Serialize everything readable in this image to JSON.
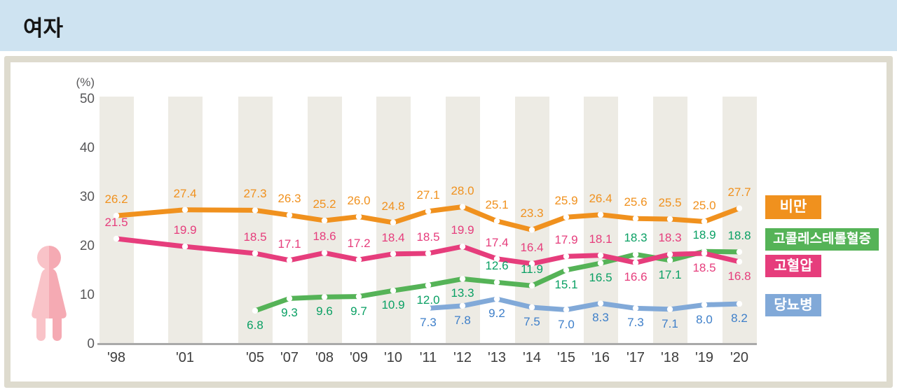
{
  "header": {
    "title": "여자"
  },
  "chart_data": {
    "type": "line",
    "unit_label": "(%)",
    "y_ticks": [
      0,
      10,
      20,
      30,
      40,
      50
    ],
    "ylim": [
      0,
      50
    ],
    "x": [
      "'98",
      "'01",
      "'05",
      "'07",
      "'08",
      "'09",
      "'10",
      "'11",
      "'12",
      "'13",
      "'14",
      "'15",
      "'16",
      "'17",
      "'18",
      "'19",
      "'20"
    ],
    "banded_x": [
      "'98",
      "'01",
      "'05",
      "'08",
      "'10",
      "'12",
      "'14",
      "'16",
      "'18",
      "'20"
    ],
    "series": [
      {
        "key": "diabetes",
        "name": "당뇨병",
        "color": "#81a9d8",
        "label_color": "#3e7fc9",
        "start_x": "'11",
        "values": [
          7.3,
          7.8,
          9.2,
          7.5,
          7.0,
          8.3,
          7.3,
          7.1,
          8.0,
          8.2
        ],
        "label_side": [
          "below",
          "below",
          "below",
          "below",
          "below",
          "below",
          "below",
          "below",
          "below",
          "below"
        ]
      },
      {
        "key": "hypercholesterolemia",
        "name": "고콜레스테롤혈증",
        "color": "#55b357",
        "label_color": "#0aa064",
        "start_x": "'05",
        "values": [
          6.8,
          9.3,
          9.6,
          9.7,
          10.9,
          12.0,
          13.3,
          12.6,
          11.9,
          15.1,
          16.5,
          18.3,
          17.1,
          18.9,
          18.8
        ],
        "label_side": [
          "below",
          "below",
          "below",
          "below",
          "below",
          "below",
          "below",
          "above",
          "above",
          "below",
          "below",
          "above",
          "below",
          "above",
          "above"
        ]
      },
      {
        "key": "hypertension",
        "name": "고혈압",
        "color": "#e63d7c",
        "label_color": "#e63d7c",
        "start_x": "'98",
        "values": [
          21.5,
          19.9,
          18.5,
          17.1,
          18.6,
          17.2,
          18.4,
          18.5,
          19.9,
          17.4,
          16.4,
          17.9,
          18.1,
          16.6,
          18.3,
          18.5,
          16.8
        ],
        "label_side": [
          "above",
          "above",
          "above",
          "above",
          "above",
          "above",
          "above",
          "above",
          "above",
          "above",
          "above",
          "above",
          "above",
          "below",
          "above",
          "below",
          "below"
        ]
      },
      {
        "key": "obesity",
        "name": "비만",
        "color": "#f0911e",
        "label_color": "#f0911e",
        "start_x": "'98",
        "values": [
          26.2,
          27.4,
          27.3,
          26.3,
          25.2,
          26.0,
          24.8,
          27.1,
          28.0,
          25.1,
          23.3,
          25.9,
          26.4,
          25.6,
          25.5,
          25.0,
          27.7
        ],
        "label_side": [
          "above",
          "above",
          "above",
          "above",
          "above",
          "above",
          "above",
          "above",
          "above",
          "above",
          "above",
          "above",
          "above",
          "above",
          "above",
          "above",
          "above"
        ]
      }
    ],
    "legend": [
      {
        "key": "obesity",
        "label": "비만",
        "color": "#f0911e"
      },
      {
        "key": "hypercholesterolemia",
        "label": "고콜레스테롤혈증",
        "color": "#55b357"
      },
      {
        "key": "hypertension",
        "label": "고혈압",
        "color": "#e63d7c"
      },
      {
        "key": "diabetes",
        "label": "당뇨병",
        "color": "#81a9d8"
      }
    ]
  },
  "person_icon": {
    "icon": "female-figure-icon",
    "left_color": "#f9c3c8",
    "right_color": "#f5aab3"
  },
  "theme": {
    "header_bg": "#cee3f1",
    "panel_border": "#dedbce",
    "band": "#edebe4",
    "axis_line": "#a9a9a9"
  }
}
